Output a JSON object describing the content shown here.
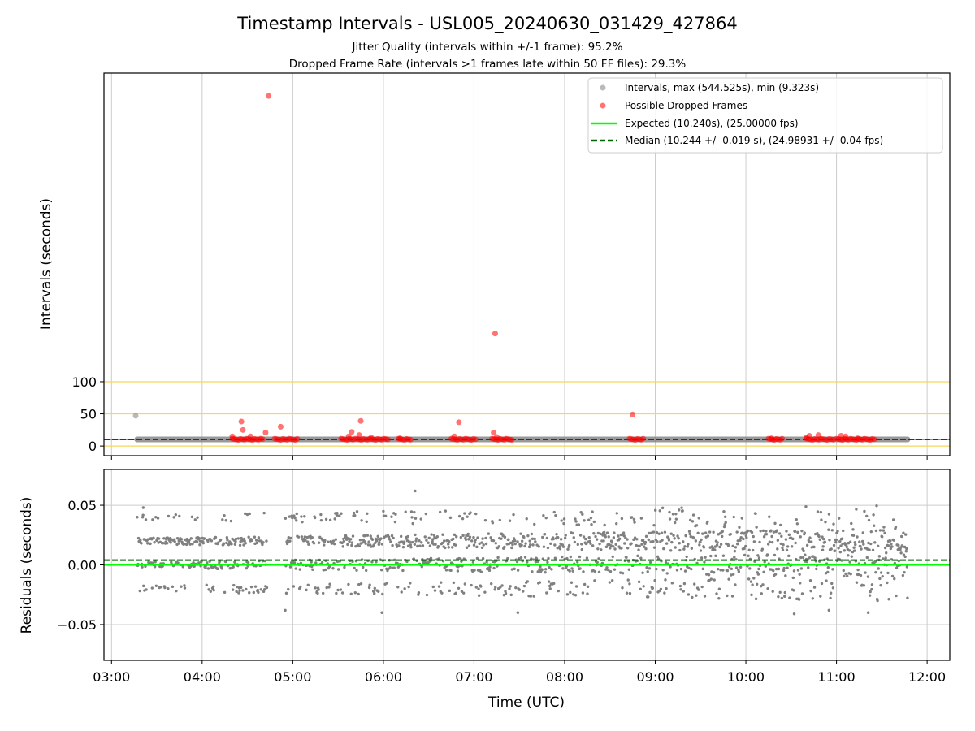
{
  "chart_data": [
    {
      "type": "scatter",
      "title": "Timestamp Intervals - USL005_20240630_031429_427864",
      "subtitle_lines": [
        "Jitter Quality (intervals within +/-1 frame): 95.2%",
        "Dropped Frame Rate (intervals >1 frames late within 50 FF files): 29.3%"
      ],
      "xlabel": "",
      "ylabel": "Intervals (seconds)",
      "xlim": [
        "02:55",
        "12:15"
      ],
      "ylim": [
        -15,
        580
      ],
      "yticks": [
        0,
        50,
        100
      ],
      "reference_lines_y": [
        0,
        50,
        100
      ],
      "expected": 10.24,
      "median": 10.244,
      "legend_position": "upper right",
      "legend": [
        "Intervals, max (544.525s), min (9.323s)",
        "Possible Dropped Frames",
        "Expected (10.240s), (25.00000 fps)",
        "Median (10.244 +/- 0.019 s), (24.98931 +/- 0.04 fps)"
      ],
      "normal_intervals": {
        "band_x": [
          "03:17",
          "11:47"
        ],
        "band_y": 10.24,
        "outliers": [
          {
            "x": "03:16",
            "y": 47
          }
        ]
      },
      "dropped_frames": [
        {
          "x": "04:44",
          "y": 544.5
        },
        {
          "x": "07:14",
          "y": 175
        },
        {
          "x": "08:45",
          "y": 49
        },
        {
          "x": "04:26",
          "y": 38
        },
        {
          "x": "04:52",
          "y": 30
        },
        {
          "x": "04:27",
          "y": 25
        },
        {
          "x": "05:45",
          "y": 39
        },
        {
          "x": "05:39",
          "y": 22
        },
        {
          "x": "06:50",
          "y": 37
        },
        {
          "x": "07:13",
          "y": 21
        },
        {
          "x": "04:42",
          "y": 21
        },
        {
          "x": "05:44",
          "y": 17
        },
        {
          "x": "05:37",
          "y": 15
        },
        {
          "x": "06:47",
          "y": 15
        },
        {
          "x": "04:20",
          "y": 15
        },
        {
          "x": "04:32",
          "y": 15
        },
        {
          "x": "10:42",
          "y": 16
        },
        {
          "x": "10:48",
          "y": 17
        },
        {
          "x": "11:03",
          "y": 16
        },
        {
          "x": "11:06",
          "y": 15
        },
        {
          "x": "07:15",
          "y": 14
        },
        {
          "x": "05:52",
          "y": 13
        },
        {
          "x": "06:11",
          "y": 12
        },
        {
          "x": "10:17",
          "y": 12
        },
        {
          "x": "11:14",
          "y": 12
        },
        {
          "x": "10:40",
          "y": 13
        }
      ],
      "dropped_frame_clusters": [
        {
          "x0": "04:20",
          "x1": "04:40",
          "y": 10.5
        },
        {
          "x0": "04:48",
          "x1": "05:03",
          "y": 10.5
        },
        {
          "x0": "05:32",
          "x1": "06:03",
          "y": 10.5
        },
        {
          "x0": "06:10",
          "x1": "06:18",
          "y": 10.5
        },
        {
          "x0": "06:45",
          "x1": "07:01",
          "y": 10.5
        },
        {
          "x0": "07:12",
          "x1": "07:25",
          "y": 10.5
        },
        {
          "x0": "08:43",
          "x1": "08:52",
          "y": 10.5
        },
        {
          "x0": "10:15",
          "x1": "10:24",
          "y": 10.5
        },
        {
          "x0": "10:40",
          "x1": "10:58",
          "y": 10.5
        },
        {
          "x0": "11:00",
          "x1": "11:25",
          "y": 10.5
        }
      ]
    },
    {
      "type": "scatter",
      "title": "",
      "xlabel": "Time (UTC)",
      "ylabel": "Residuals (seconds)",
      "xlim": [
        "02:55",
        "12:15"
      ],
      "ylim": [
        -0.08,
        0.08
      ],
      "yticks": [
        -0.05,
        0.0,
        0.05
      ],
      "ytick_labels": [
        "−0.05",
        "0.00",
        "0.05"
      ],
      "xticks": [
        "03:00",
        "04:00",
        "05:00",
        "06:00",
        "07:00",
        "08:00",
        "09:00",
        "10:00",
        "11:00",
        "12:00"
      ],
      "expected_residual": 0.0,
      "median_residual": 0.004,
      "residual_range": [
        "03:17",
        "11:47"
      ],
      "residual_gap": [
        "04:43",
        "04:55"
      ],
      "residual_levels": [
        -0.02,
        0.0,
        0.02,
        0.04
      ],
      "residual_extremes": [
        {
          "x": "06:21",
          "y": 0.062
        },
        {
          "x": "03:21",
          "y": 0.048
        },
        {
          "x": "04:55",
          "y": -0.038
        },
        {
          "x": "05:59",
          "y": -0.04
        },
        {
          "x": "07:29",
          "y": -0.04
        },
        {
          "x": "10:32",
          "y": -0.041
        },
        {
          "x": "10:55",
          "y": -0.038
        },
        {
          "x": "11:21",
          "y": -0.04
        }
      ]
    }
  ],
  "colors": {
    "normal": "#808080",
    "dropped": "#ff0000",
    "expected": "#00ff00",
    "median": "#006400",
    "ref_lines": "#f5d75a",
    "grid": "#cccccc"
  }
}
